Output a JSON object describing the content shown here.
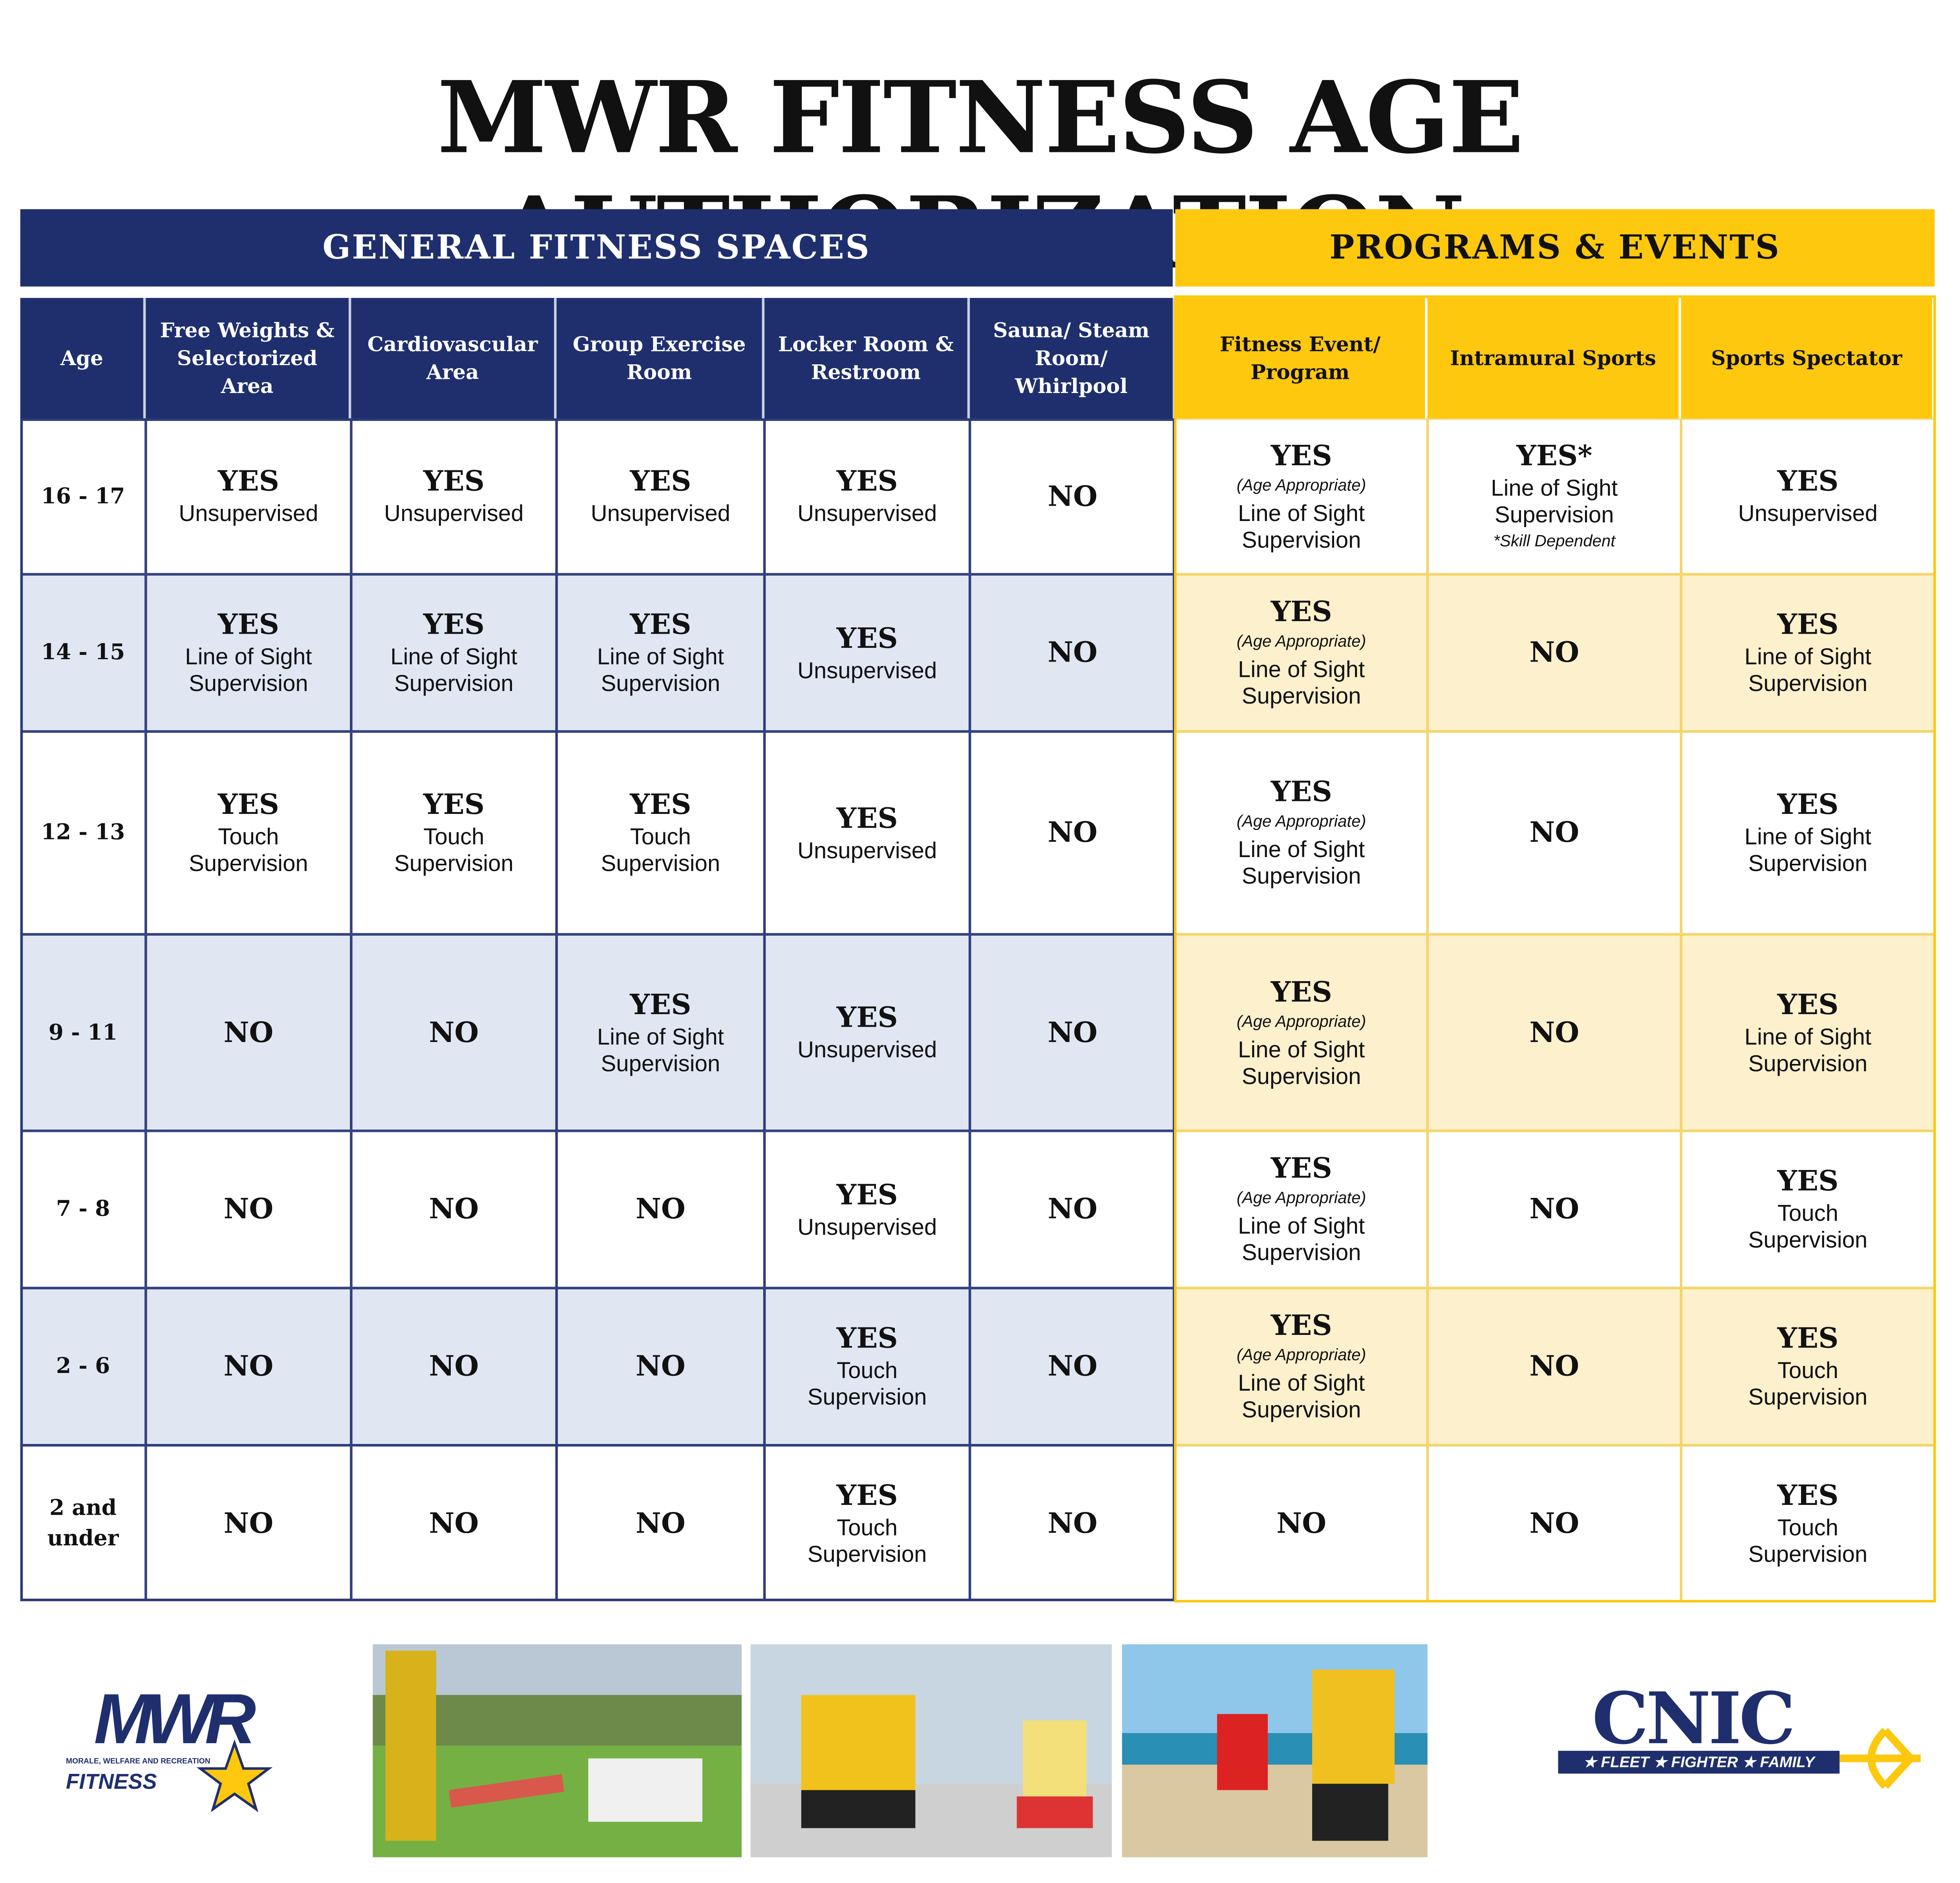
{
  "title": "MWR FITNESS AGE AUTHORIZATION",
  "table": {
    "groups": [
      "GENERAL FITNESS SPACES",
      "PROGRAMS & EVENTS"
    ],
    "columns": [
      "Age",
      "Free Weights & Selectorized Area",
      "Cardiovascular Area",
      "Group Exercise Room",
      "Locker Room & Restroom",
      "Sauna/ Steam Room/ Whirlpool",
      "Fitness Event/ Program",
      "Intramural Sports",
      "Sports Spectator"
    ],
    "rows": [
      {
        "age": "16 - 17",
        "cells": [
          {
            "main": "YES",
            "detail": "Unsupervised"
          },
          {
            "main": "YES",
            "detail": "Unsupervised"
          },
          {
            "main": "YES",
            "detail": "Unsupervised"
          },
          {
            "main": "YES",
            "detail": "Unsupervised"
          },
          {
            "main": "NO"
          },
          {
            "main": "YES",
            "note": "(Age Appropriate)",
            "detail": "Line of Sight Supervision"
          },
          {
            "main": "YES*",
            "detail": "Line of Sight Supervision",
            "footnote": "*Skill Dependent"
          },
          {
            "main": "YES",
            "detail": "Unsupervised"
          }
        ]
      },
      {
        "age": "14 - 15",
        "cells": [
          {
            "main": "YES",
            "detail": "Line of Sight Supervision"
          },
          {
            "main": "YES",
            "detail": "Line of Sight Supervision"
          },
          {
            "main": "YES",
            "detail": "Line of Sight Supervision"
          },
          {
            "main": "YES",
            "detail": "Unsupervised"
          },
          {
            "main": "NO"
          },
          {
            "main": "YES",
            "note": "(Age Appropriate)",
            "detail": "Line of Sight Supervision"
          },
          {
            "main": "NO"
          },
          {
            "main": "YES",
            "detail": "Line of Sight Supervision"
          }
        ]
      },
      {
        "age": "12 - 13",
        "cells": [
          {
            "main": "YES",
            "detail": "Touch Supervision"
          },
          {
            "main": "YES",
            "detail": "Touch Supervision"
          },
          {
            "main": "YES",
            "detail": "Touch Supervision"
          },
          {
            "main": "YES",
            "detail": "Unsupervised"
          },
          {
            "main": "NO"
          },
          {
            "main": "YES",
            "note": "(Age Appropriate)",
            "detail": "Line of Sight Supervision"
          },
          {
            "main": "NO"
          },
          {
            "main": "YES",
            "detail": "Line of Sight Supervision"
          }
        ]
      },
      {
        "age": "9 - 11",
        "cells": [
          {
            "main": "NO"
          },
          {
            "main": "NO"
          },
          {
            "main": "YES",
            "detail": "Line of Sight Supervision"
          },
          {
            "main": "YES",
            "detail": "Unsupervised"
          },
          {
            "main": "NO"
          },
          {
            "main": "YES",
            "note": "(Age Appropriate)",
            "detail": "Line of Sight Supervision"
          },
          {
            "main": "NO"
          },
          {
            "main": "YES",
            "detail": "Line of Sight Supervision"
          }
        ]
      },
      {
        "age": "7 - 8",
        "cells": [
          {
            "main": "NO"
          },
          {
            "main": "NO"
          },
          {
            "main": "NO"
          },
          {
            "main": "YES",
            "detail": "Unsupervised"
          },
          {
            "main": "NO"
          },
          {
            "main": "YES",
            "note": "(Age Appropriate)",
            "detail": "Line of Sight Supervision"
          },
          {
            "main": "NO"
          },
          {
            "main": "YES",
            "detail": "Touch Supervision"
          }
        ]
      },
      {
        "age": "2 - 6",
        "cells": [
          {
            "main": "NO"
          },
          {
            "main": "NO"
          },
          {
            "main": "NO"
          },
          {
            "main": "YES",
            "detail": "Touch Supervision"
          },
          {
            "main": "NO"
          },
          {
            "main": "YES",
            "note": "(Age Appropriate)",
            "detail": "Line of Sight Supervision"
          },
          {
            "main": "NO"
          },
          {
            "main": "YES",
            "detail": "Touch Supervision"
          }
        ]
      },
      {
        "age": "2 and under",
        "cells": [
          {
            "main": "NO"
          },
          {
            "main": "NO"
          },
          {
            "main": "NO"
          },
          {
            "main": "YES",
            "detail": "Touch Supervision"
          },
          {
            "main": "NO"
          },
          {
            "main": "NO"
          },
          {
            "main": "NO"
          },
          {
            "main": "YES",
            "detail": "Touch Supervision"
          }
        ]
      }
    ]
  },
  "footer": {
    "mwr_logo": {
      "name": "MWR",
      "tagline": "MORALE, WELFARE AND RECREATION",
      "label": "FITNESS"
    },
    "cnic_logo": {
      "name": "CNIC",
      "tagline": "★ FLEET ★ FIGHTER ★ FAMILY"
    }
  }
}
